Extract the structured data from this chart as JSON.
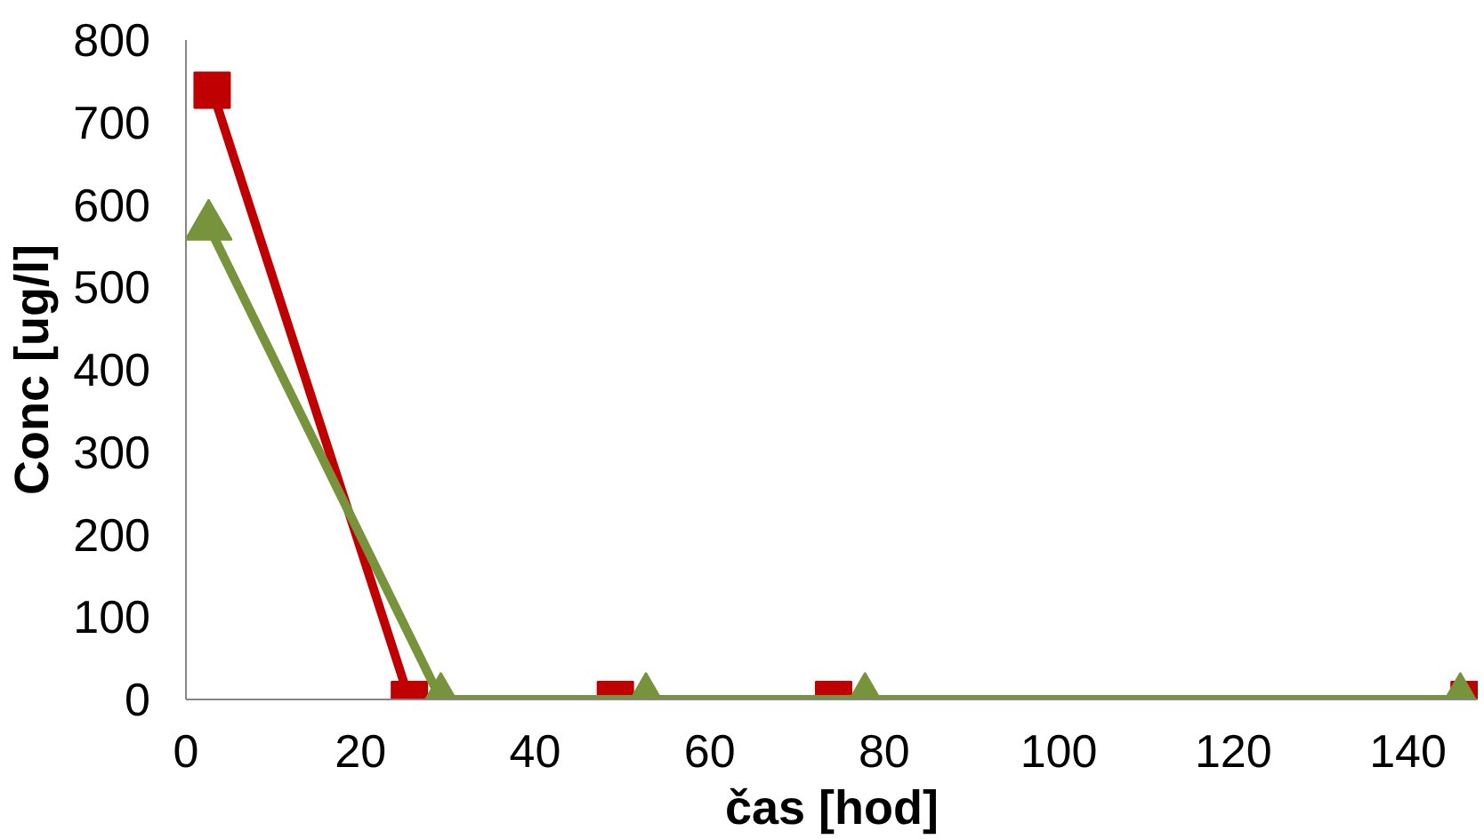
{
  "chart_data": {
    "type": "line",
    "xlabel": "čas [hod]",
    "ylabel": "Conc [ug/l]",
    "xlim": [
      0,
      148
    ],
    "ylim": [
      0,
      800
    ],
    "xticks": [
      0,
      20,
      40,
      60,
      80,
      100,
      120,
      140
    ],
    "yticks": [
      0,
      100,
      200,
      300,
      400,
      500,
      600,
      700,
      800
    ],
    "grid": false,
    "line_style": "solid",
    "series": [
      {
        "color": "#c00000",
        "marker": "square",
        "x": [
          3,
          25.6,
          49.2,
          74.2,
          147
        ],
        "values": [
          739,
          0,
          0,
          0,
          0
        ]
      },
      {
        "color": "#77933c",
        "marker": "triangle",
        "x": [
          2.6,
          29.2,
          52.7,
          77.8,
          146
        ],
        "values": [
          574,
          0,
          0,
          0,
          0
        ]
      }
    ]
  }
}
